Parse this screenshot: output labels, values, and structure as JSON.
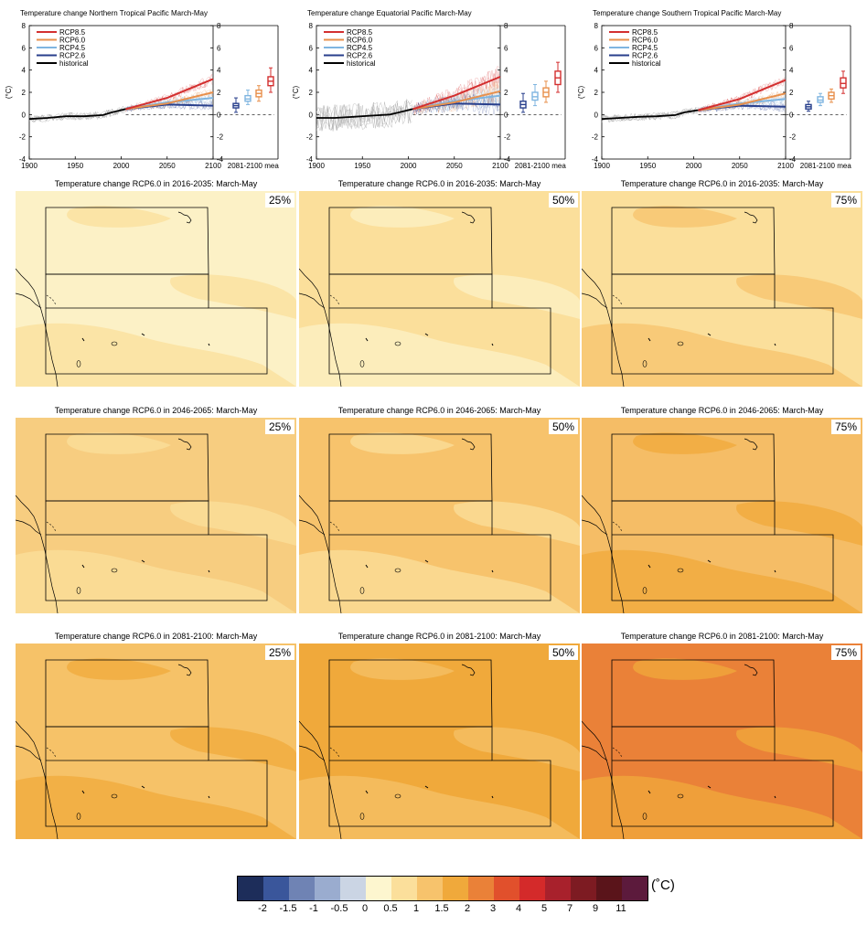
{
  "colors": {
    "rcp85": "#d32f2f",
    "rcp60": "#e8904c",
    "rcp45": "#7fb5e0",
    "rcp26": "#283f8c",
    "historical": "#000000"
  },
  "chart_data": [
    {
      "type": "line",
      "title": "Temperature change Northern Tropical Pacific March-May",
      "ylabel": "(°C)",
      "xlim": [
        1900,
        2100
      ],
      "ylim": [
        -4,
        8
      ],
      "x_ticks": [
        "1900",
        "1950",
        "2000",
        "2050",
        "2100"
      ],
      "y_ticks": [
        "-4",
        "-2",
        "0",
        "2",
        "4",
        "6",
        "8"
      ],
      "boxplot_label": "2081-2100 mean",
      "legend": [
        "RCP8.5",
        "RCP6.0",
        "RCP4.5",
        "RCP2.6",
        "historical"
      ],
      "series": [
        {
          "name": "historical",
          "x": [
            1900,
            1920,
            1940,
            1960,
            1980,
            1990,
            2005
          ],
          "y": [
            -0.4,
            -0.3,
            -0.15,
            -0.15,
            -0.05,
            0.2,
            0.5
          ]
        },
        {
          "name": "RCP8.5",
          "x": [
            2005,
            2050,
            2100
          ],
          "y": [
            0.5,
            1.5,
            3.2
          ]
        },
        {
          "name": "RCP6.0",
          "x": [
            2005,
            2050,
            2100
          ],
          "y": [
            0.5,
            1.0,
            2.0
          ]
        },
        {
          "name": "RCP4.5",
          "x": [
            2005,
            2050,
            2100
          ],
          "y": [
            0.5,
            1.1,
            1.5
          ]
        },
        {
          "name": "RCP2.6",
          "x": [
            2005,
            2050,
            2100
          ],
          "y": [
            0.5,
            0.9,
            0.8
          ]
        }
      ],
      "boxplots": [
        {
          "name": "RCP2.6",
          "min": 0.2,
          "q1": 0.6,
          "median": 0.8,
          "q3": 1.0,
          "max": 1.5
        },
        {
          "name": "RCP4.5",
          "min": 0.9,
          "q1": 1.2,
          "median": 1.4,
          "q3": 1.7,
          "max": 2.2
        },
        {
          "name": "RCP6.0",
          "min": 1.2,
          "q1": 1.6,
          "median": 1.9,
          "q3": 2.2,
          "max": 2.6
        },
        {
          "name": "RCP8.5",
          "min": 2.0,
          "q1": 2.6,
          "median": 3.0,
          "q3": 3.4,
          "max": 4.2
        }
      ]
    },
    {
      "type": "line",
      "title": "Temperature change Equatorial Pacific March-May",
      "ylabel": "(°C)",
      "xlim": [
        1900,
        2100
      ],
      "ylim": [
        -4,
        8
      ],
      "x_ticks": [
        "1900",
        "1950",
        "2000",
        "2050",
        "2100"
      ],
      "y_ticks": [
        "-4",
        "-2",
        "0",
        "2",
        "4",
        "6",
        "8"
      ],
      "boxplot_label": "2081-2100 mean",
      "legend": [
        "RCP8.5",
        "RCP6.0",
        "RCP4.5",
        "RCP2.6",
        "historical"
      ],
      "series": [
        {
          "name": "historical",
          "x": [
            1900,
            1920,
            1940,
            1960,
            1980,
            1990,
            2005
          ],
          "y": [
            -0.3,
            -0.3,
            -0.2,
            -0.1,
            0.0,
            0.2,
            0.5
          ]
        },
        {
          "name": "RCP8.5",
          "x": [
            2005,
            2050,
            2100
          ],
          "y": [
            0.5,
            1.7,
            3.4
          ]
        },
        {
          "name": "RCP6.0",
          "x": [
            2005,
            2050,
            2100
          ],
          "y": [
            0.5,
            1.1,
            2.1
          ]
        },
        {
          "name": "RCP4.5",
          "x": [
            2005,
            2050,
            2100
          ],
          "y": [
            0.5,
            1.2,
            1.7
          ]
        },
        {
          "name": "RCP2.6",
          "x": [
            2005,
            2050,
            2100
          ],
          "y": [
            0.5,
            1.0,
            0.9
          ]
        }
      ],
      "boxplots": [
        {
          "name": "RCP2.6",
          "min": 0.2,
          "q1": 0.6,
          "median": 0.9,
          "q3": 1.2,
          "max": 1.9
        },
        {
          "name": "RCP4.5",
          "min": 0.8,
          "q1": 1.3,
          "median": 1.6,
          "q3": 2.0,
          "max": 2.7
        },
        {
          "name": "RCP6.0",
          "min": 1.1,
          "q1": 1.6,
          "median": 2.0,
          "q3": 2.4,
          "max": 3.0
        },
        {
          "name": "RCP8.5",
          "min": 2.0,
          "q1": 2.7,
          "median": 3.3,
          "q3": 3.9,
          "max": 4.7
        }
      ]
    },
    {
      "type": "line",
      "title": "Temperature change Southern Tropical Pacific March-May",
      "ylabel": "(°C)",
      "xlim": [
        1900,
        2100
      ],
      "ylim": [
        -4,
        8
      ],
      "x_ticks": [
        "1900",
        "1950",
        "2000",
        "2050",
        "2100"
      ],
      "y_ticks": [
        "-4",
        "-2",
        "0",
        "2",
        "4",
        "6",
        "8"
      ],
      "boxplot_label": "2081-2100 mean",
      "legend": [
        "RCP8.5",
        "RCP6.0",
        "RCP4.5",
        "RCP2.6",
        "historical"
      ],
      "series": [
        {
          "name": "historical",
          "x": [
            1900,
            1920,
            1940,
            1960,
            1980,
            1990,
            2005
          ],
          "y": [
            -0.4,
            -0.3,
            -0.2,
            -0.15,
            -0.05,
            0.2,
            0.4
          ]
        },
        {
          "name": "RCP8.5",
          "x": [
            2005,
            2050,
            2100
          ],
          "y": [
            0.4,
            1.4,
            3.1
          ]
        },
        {
          "name": "RCP6.0",
          "x": [
            2005,
            2050,
            2100
          ],
          "y": [
            0.4,
            0.9,
            1.9
          ]
        },
        {
          "name": "RCP4.5",
          "x": [
            2005,
            2050,
            2100
          ],
          "y": [
            0.4,
            1.0,
            1.4
          ]
        },
        {
          "name": "RCP2.6",
          "x": [
            2005,
            2050,
            2100
          ],
          "y": [
            0.4,
            0.8,
            0.7
          ]
        }
      ],
      "boxplots": [
        {
          "name": "RCP2.6",
          "min": 0.3,
          "q1": 0.5,
          "median": 0.7,
          "q3": 0.9,
          "max": 1.2
        },
        {
          "name": "RCP4.5",
          "min": 0.8,
          "q1": 1.1,
          "median": 1.3,
          "q3": 1.6,
          "max": 1.9
        },
        {
          "name": "RCP6.0",
          "min": 1.1,
          "q1": 1.4,
          "median": 1.7,
          "q3": 2.0,
          "max": 2.3
        },
        {
          "name": "RCP8.5",
          "min": 1.9,
          "q1": 2.4,
          "median": 2.8,
          "q3": 3.3,
          "max": 3.9
        }
      ]
    },
    {
      "type": "heatmap",
      "panels": [
        {
          "title": "Temperature change RCP6.0 in 2016-2035: March-May",
          "percentile": "25%",
          "base_value": "0.5",
          "base_color": "#fcf1c6",
          "patch_color": "#fbdf9b"
        },
        {
          "title": "Temperature change RCP6.0 in 2016-2035: March-May",
          "percentile": "50%",
          "base_value": "0.5-1",
          "base_color": "#fbdf9b",
          "patch_color": "#fcf1c6"
        },
        {
          "title": "Temperature change RCP6.0 in 2016-2035: March-May",
          "percentile": "75%",
          "base_value": "0.5-1",
          "base_color": "#fbdf9b",
          "patch_color": "#f7c36c"
        },
        {
          "title": "Temperature change RCP6.0 in 2046-2065: March-May",
          "percentile": "25%",
          "base_value": "1-1.5",
          "base_color": "#f7cd80",
          "patch_color": "#fbdf9b"
        },
        {
          "title": "Temperature change RCP6.0 in 2046-2065: March-May",
          "percentile": "50%",
          "base_value": "1-1.5",
          "base_color": "#f7c36c",
          "patch_color": "#fbdf9b"
        },
        {
          "title": "Temperature change RCP6.0 in 2046-2065: March-May",
          "percentile": "75%",
          "base_value": "1-1.5",
          "base_color": "#f5bd66",
          "patch_color": "#f0a93b"
        },
        {
          "title": "Temperature change RCP6.0 in 2081-2100: March-May",
          "percentile": "25%",
          "base_value": "1.5-2",
          "base_color": "#f6c268",
          "patch_color": "#f0a93b"
        },
        {
          "title": "Temperature change RCP6.0 in 2081-2100: March-May",
          "percentile": "50%",
          "base_value": "2",
          "base_color": "#f0a93b",
          "patch_color": "#f6c268"
        },
        {
          "title": "Temperature change RCP6.0 in 2081-2100: March-May",
          "percentile": "75%",
          "base_value": "2-3",
          "base_color": "#ea8138",
          "patch_color": "#f0a93b"
        }
      ]
    }
  ],
  "colorbar": {
    "unit": "(˚C)",
    "colors": [
      "#1d2d5a",
      "#3a569b",
      "#6f83b4",
      "#9aaccf",
      "#cbd5e4",
      "#fdf6cf",
      "#fbdf9b",
      "#f7c36c",
      "#f0a93b",
      "#ea8138",
      "#e1502c",
      "#d42a2a",
      "#a8212c",
      "#7d1b22",
      "#5a141a",
      "#5c1a3c"
    ],
    "labels": [
      "-2",
      "-1.5",
      "-1",
      "-0.5",
      "0",
      "0.5",
      "1",
      "1.5",
      "2",
      "3",
      "4",
      "5",
      "7",
      "9",
      "11"
    ]
  }
}
